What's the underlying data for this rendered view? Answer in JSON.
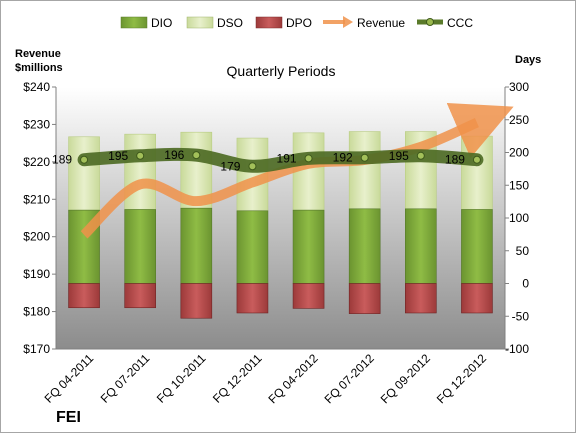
{
  "chart_data": {
    "type": "bar",
    "title": "Quarterly Periods",
    "company": "FEI",
    "y_left_label": [
      "Revenue",
      "$millions"
    ],
    "y_right_label": "Days",
    "left_axis": {
      "min": 170,
      "max": 240,
      "step": 10,
      "prefix": "$"
    },
    "right_axis": {
      "min": -100,
      "max": 300,
      "step": 50
    },
    "grid": false,
    "legend_position": "top",
    "categories": [
      "FQ 04-2011",
      "FQ 07-2011",
      "FQ 10-2011",
      "FQ 12-2011",
      "FQ 04-2012",
      "FQ 07-2012",
      "FQ 09-2012",
      "FQ 12-2012"
    ],
    "series": [
      {
        "name": "DIO",
        "type": "bar",
        "axis": "right",
        "color": "#7ea83a",
        "values": [
          112,
          113,
          115,
          111,
          112,
          114,
          114,
          113
        ]
      },
      {
        "name": "DSO",
        "type": "bar",
        "axis": "right",
        "stacked_on": "DIO",
        "color": "#dbe8b4",
        "values": [
          112,
          115,
          116,
          111,
          118,
          118,
          118,
          112
        ]
      },
      {
        "name": "DPO",
        "type": "bar",
        "axis": "right",
        "color": "#b54a4a",
        "values": [
          -37,
          -37,
          -53,
          -45,
          -38,
          -46,
          -45,
          -45
        ]
      },
      {
        "name": "Revenue",
        "type": "line",
        "axis": "left",
        "color": "#f0924a",
        "values": [
          200.5,
          214,
          209.5,
          214.5,
          219.5,
          220.5,
          224,
          230.5
        ]
      },
      {
        "name": "CCC",
        "type": "line",
        "axis": "right",
        "color": "#5a7a2a",
        "values": [
          189,
          195,
          196,
          179,
          191,
          192,
          195,
          189
        ]
      }
    ],
    "ccc_labels": [
      "189",
      "195",
      "196",
      "179",
      "191",
      "192",
      "195",
      "189"
    ]
  }
}
